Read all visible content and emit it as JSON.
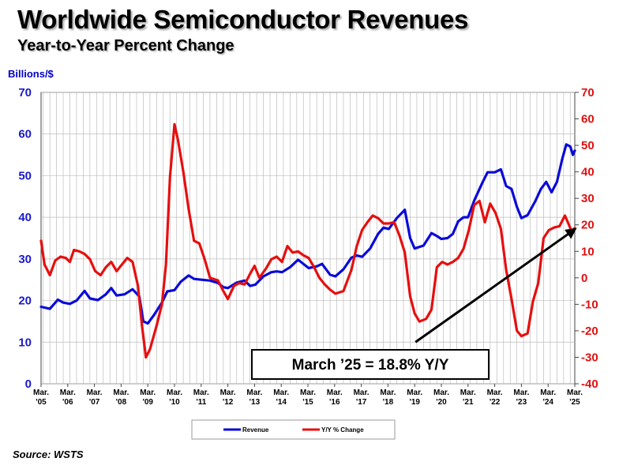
{
  "header": {
    "title": "Worldwide Semiconductor Revenues",
    "subtitle": "Year-to-Year Percent Change",
    "unit_label": "Billions/$"
  },
  "footer": {
    "source": "Source: WSTS"
  },
  "chart_data": {
    "type": "line",
    "title": "Worldwide Semiconductor Revenues",
    "subtitle": "Year-to-Year Percent Change",
    "ylabel": "Billions/$",
    "ylim": [
      0,
      70
    ],
    "y2lim": [
      -40,
      70
    ],
    "yticks": [
      0,
      10,
      20,
      30,
      40,
      50,
      60,
      70
    ],
    "y2ticks": [
      -40,
      -30,
      -20,
      -10,
      0,
      10,
      20,
      30,
      40,
      50,
      60,
      70
    ],
    "x_range": [
      2005.17,
      2025.17
    ],
    "x_ticks": [
      {
        "x": 2005.17,
        "label": [
          "Mar.",
          "'05"
        ]
      },
      {
        "x": 2006.17,
        "label": [
          "Mar.",
          "'06"
        ]
      },
      {
        "x": 2007.17,
        "label": [
          "Mar.",
          "'07"
        ]
      },
      {
        "x": 2008.17,
        "label": [
          "Mar.",
          "'08"
        ]
      },
      {
        "x": 2009.17,
        "label": [
          "Mar.",
          "'09"
        ]
      },
      {
        "x": 2010.17,
        "label": [
          "Mar.",
          "'10"
        ]
      },
      {
        "x": 2011.17,
        "label": [
          "Mar.",
          "'11"
        ]
      },
      {
        "x": 2012.17,
        "label": [
          "Mar.",
          "'12"
        ]
      },
      {
        "x": 2013.17,
        "label": [
          "Mar.",
          "'13"
        ]
      },
      {
        "x": 2014.17,
        "label": [
          "Mar.",
          "'14"
        ]
      },
      {
        "x": 2015.17,
        "label": [
          "Mar.",
          "'15"
        ]
      },
      {
        "x": 2016.17,
        "label": [
          "Mar.",
          "'16"
        ]
      },
      {
        "x": 2017.17,
        "label": [
          "Mar.",
          "'17"
        ]
      },
      {
        "x": 2018.17,
        "label": [
          "Mar.",
          "'18"
        ]
      },
      {
        "x": 2019.17,
        "label": [
          "Mar.",
          "'19"
        ]
      },
      {
        "x": 2020.17,
        "label": [
          "Mar.",
          "'20"
        ]
      },
      {
        "x": 2021.17,
        "label": [
          "Mar.",
          "'21"
        ]
      },
      {
        "x": 2022.17,
        "label": [
          "Mar.",
          "'22"
        ]
      },
      {
        "x": 2023.17,
        "label": [
          "Mar.",
          "'23"
        ]
      },
      {
        "x": 2024.17,
        "label": [
          "Mar.",
          "'24"
        ]
      },
      {
        "x": 2025.17,
        "label": [
          "Mar.",
          "'25"
        ]
      }
    ],
    "grid": true,
    "legend_position": "bottom-center",
    "series": [
      {
        "name": "Revenue",
        "axis": "left",
        "color": "#0a0ad8",
        "points": [
          [
            2005.17,
            18.5
          ],
          [
            2005.5,
            18.0
          ],
          [
            2005.8,
            20.2
          ],
          [
            2006.0,
            19.5
          ],
          [
            2006.25,
            19.2
          ],
          [
            2006.5,
            20.0
          ],
          [
            2006.8,
            22.3
          ],
          [
            2007.0,
            20.5
          ],
          [
            2007.3,
            20.1
          ],
          [
            2007.6,
            21.5
          ],
          [
            2007.8,
            23.0
          ],
          [
            2008.0,
            21.2
          ],
          [
            2008.3,
            21.5
          ],
          [
            2008.6,
            22.7
          ],
          [
            2008.85,
            21.0
          ],
          [
            2009.0,
            15.0
          ],
          [
            2009.17,
            14.5
          ],
          [
            2009.4,
            16.5
          ],
          [
            2009.7,
            19.5
          ],
          [
            2009.9,
            22.2
          ],
          [
            2010.17,
            22.5
          ],
          [
            2010.4,
            24.5
          ],
          [
            2010.7,
            26.0
          ],
          [
            2010.9,
            25.2
          ],
          [
            2011.17,
            25.0
          ],
          [
            2011.5,
            24.8
          ],
          [
            2011.8,
            24.2
          ],
          [
            2012.0,
            23.2
          ],
          [
            2012.17,
            23.0
          ],
          [
            2012.5,
            24.3
          ],
          [
            2012.8,
            24.8
          ],
          [
            2013.0,
            23.5
          ],
          [
            2013.2,
            23.8
          ],
          [
            2013.5,
            25.8
          ],
          [
            2013.8,
            26.8
          ],
          [
            2014.0,
            27.0
          ],
          [
            2014.2,
            26.8
          ],
          [
            2014.5,
            28.0
          ],
          [
            2014.8,
            29.8
          ],
          [
            2015.0,
            28.8
          ],
          [
            2015.2,
            27.8
          ],
          [
            2015.5,
            28.2
          ],
          [
            2015.7,
            28.8
          ],
          [
            2016.0,
            26.2
          ],
          [
            2016.2,
            25.8
          ],
          [
            2016.5,
            27.5
          ],
          [
            2016.8,
            30.3
          ],
          [
            2017.0,
            30.8
          ],
          [
            2017.2,
            30.5
          ],
          [
            2017.5,
            32.5
          ],
          [
            2017.8,
            36.0
          ],
          [
            2018.0,
            37.5
          ],
          [
            2018.2,
            37.2
          ],
          [
            2018.5,
            39.8
          ],
          [
            2018.8,
            41.8
          ],
          [
            2019.0,
            35.0
          ],
          [
            2019.17,
            32.5
          ],
          [
            2019.5,
            33.2
          ],
          [
            2019.8,
            36.2
          ],
          [
            2020.0,
            35.5
          ],
          [
            2020.17,
            34.8
          ],
          [
            2020.4,
            35.0
          ],
          [
            2020.6,
            36.0
          ],
          [
            2020.8,
            39.0
          ],
          [
            2021.0,
            40.0
          ],
          [
            2021.17,
            40.0
          ],
          [
            2021.4,
            44.0
          ],
          [
            2021.7,
            48.2
          ],
          [
            2021.9,
            50.8
          ],
          [
            2022.17,
            50.8
          ],
          [
            2022.4,
            51.5
          ],
          [
            2022.6,
            47.5
          ],
          [
            2022.8,
            46.8
          ],
          [
            2023.0,
            42.5
          ],
          [
            2023.17,
            39.8
          ],
          [
            2023.4,
            40.5
          ],
          [
            2023.7,
            44.0
          ],
          [
            2023.9,
            46.8
          ],
          [
            2024.1,
            48.5
          ],
          [
            2024.3,
            46.0
          ],
          [
            2024.5,
            48.5
          ],
          [
            2024.7,
            54.0
          ],
          [
            2024.85,
            57.5
          ],
          [
            2025.0,
            57.0
          ],
          [
            2025.1,
            55.0
          ],
          [
            2025.17,
            56.0
          ]
        ]
      },
      {
        "name": "Y/Y % Change",
        "axis": "right",
        "color": "#e60f0f",
        "points": [
          [
            2005.17,
            14.0
          ],
          [
            2005.3,
            5.0
          ],
          [
            2005.5,
            1.0
          ],
          [
            2005.7,
            6.5
          ],
          [
            2005.9,
            8.0
          ],
          [
            2006.1,
            7.5
          ],
          [
            2006.25,
            6.0
          ],
          [
            2006.4,
            10.5
          ],
          [
            2006.6,
            10.0
          ],
          [
            2006.8,
            9.0
          ],
          [
            2007.0,
            7.0
          ],
          [
            2007.2,
            2.5
          ],
          [
            2007.4,
            1.0
          ],
          [
            2007.6,
            4.0
          ],
          [
            2007.8,
            6.0
          ],
          [
            2008.0,
            2.5
          ],
          [
            2008.2,
            5.0
          ],
          [
            2008.4,
            7.5
          ],
          [
            2008.6,
            6.0
          ],
          [
            2008.8,
            -3.0
          ],
          [
            2008.95,
            -18.0
          ],
          [
            2009.1,
            -30.0
          ],
          [
            2009.25,
            -27.0
          ],
          [
            2009.5,
            -18.0
          ],
          [
            2009.7,
            -10.0
          ],
          [
            2009.85,
            5.0
          ],
          [
            2010.0,
            38.0
          ],
          [
            2010.17,
            58.0
          ],
          [
            2010.3,
            52.0
          ],
          [
            2010.5,
            40.0
          ],
          [
            2010.7,
            26.0
          ],
          [
            2010.9,
            14.0
          ],
          [
            2011.1,
            13.0
          ],
          [
            2011.3,
            7.0
          ],
          [
            2011.5,
            0.0
          ],
          [
            2011.8,
            -1.0
          ],
          [
            2012.0,
            -5.0
          ],
          [
            2012.17,
            -8.0
          ],
          [
            2012.4,
            -3.0
          ],
          [
            2012.6,
            -2.0
          ],
          [
            2012.8,
            -2.5
          ],
          [
            2013.0,
            1.5
          ],
          [
            2013.17,
            4.5
          ],
          [
            2013.35,
            0.0
          ],
          [
            2013.6,
            3.5
          ],
          [
            2013.8,
            7.0
          ],
          [
            2014.0,
            8.0
          ],
          [
            2014.2,
            6.0
          ],
          [
            2014.4,
            12.0
          ],
          [
            2014.6,
            9.5
          ],
          [
            2014.8,
            10.0
          ],
          [
            2015.0,
            8.5
          ],
          [
            2015.2,
            7.5
          ],
          [
            2015.4,
            4.0
          ],
          [
            2015.6,
            0.0
          ],
          [
            2015.8,
            -2.5
          ],
          [
            2016.0,
            -4.5
          ],
          [
            2016.2,
            -6.0
          ],
          [
            2016.5,
            -5.0
          ],
          [
            2016.8,
            3.0
          ],
          [
            2017.0,
            12.0
          ],
          [
            2017.2,
            18.0
          ],
          [
            2017.4,
            21.0
          ],
          [
            2017.6,
            23.5
          ],
          [
            2017.8,
            22.5
          ],
          [
            2018.0,
            20.5
          ],
          [
            2018.2,
            20.5
          ],
          [
            2018.4,
            21.0
          ],
          [
            2018.6,
            16.0
          ],
          [
            2018.8,
            9.5
          ],
          [
            2019.0,
            -7.0
          ],
          [
            2019.17,
            -13.5
          ],
          [
            2019.35,
            -16.5
          ],
          [
            2019.6,
            -15.5
          ],
          [
            2019.8,
            -12.0
          ],
          [
            2020.0,
            4.0
          ],
          [
            2020.2,
            6.0
          ],
          [
            2020.4,
            5.0
          ],
          [
            2020.6,
            6.0
          ],
          [
            2020.8,
            7.5
          ],
          [
            2021.0,
            11.0
          ],
          [
            2021.2,
            18.0
          ],
          [
            2021.4,
            27.5
          ],
          [
            2021.6,
            29.0
          ],
          [
            2021.8,
            21.0
          ],
          [
            2022.0,
            28.0
          ],
          [
            2022.2,
            24.5
          ],
          [
            2022.4,
            18.5
          ],
          [
            2022.6,
            3.0
          ],
          [
            2022.8,
            -8.0
          ],
          [
            2023.0,
            -20.0
          ],
          [
            2023.17,
            -22.0
          ],
          [
            2023.4,
            -21.0
          ],
          [
            2023.6,
            -9.0
          ],
          [
            2023.8,
            -2.0
          ],
          [
            2024.0,
            15.0
          ],
          [
            2024.2,
            18.0
          ],
          [
            2024.4,
            19.0
          ],
          [
            2024.6,
            19.5
          ],
          [
            2024.8,
            23.5
          ],
          [
            2024.95,
            20.0
          ],
          [
            2025.05,
            17.5
          ],
          [
            2025.17,
            18.8
          ]
        ]
      }
    ],
    "annotation": {
      "text": "March ’25 = 18.8% Y/Y",
      "arrow_from": [
        2019.2,
        10.0
      ],
      "arrow_to": [
        2025.15,
        37.0
      ]
    }
  }
}
